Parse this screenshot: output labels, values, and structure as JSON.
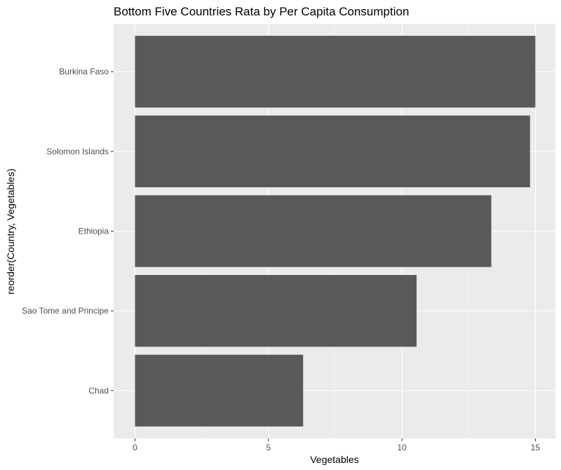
{
  "chart_data": {
    "type": "bar",
    "orientation": "horizontal",
    "title": "Bottom Five Countries Rata by Per Capita Consumption",
    "xlabel": "Vegetables",
    "ylabel": "reorder(Country, Vegetables)",
    "categories": [
      "Chad",
      "Sao Tome and Principe",
      "Ethiopia",
      "Solomon Islands",
      "Burkina Faso"
    ],
    "values": [
      6.3,
      10.55,
      13.35,
      14.8,
      15.0
    ],
    "xlim": [
      -0.8,
      15.75
    ],
    "xticks": [
      0,
      5,
      10,
      15
    ],
    "grid": true,
    "colors": {
      "bar": "#595959",
      "panel": "#ebebeb",
      "grid_major": "#ffffff",
      "grid_minor": "#f5f5f5",
      "tick": "#333333"
    }
  }
}
